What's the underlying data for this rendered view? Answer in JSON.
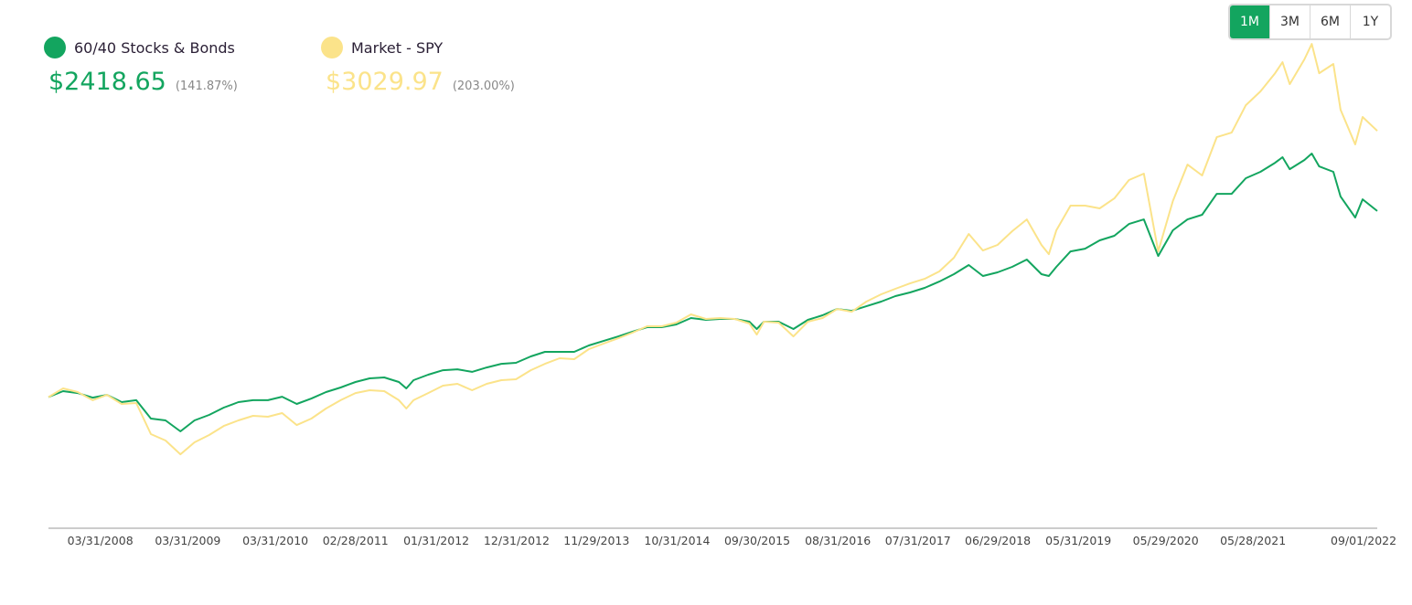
{
  "range_buttons": [
    "1M",
    "3M",
    "6M",
    "1Y"
  ],
  "active_range": 0,
  "chart_data": {
    "type": "line",
    "x": [
      "08/28/2007",
      "10/28/2007",
      "12/28/2007",
      "02/28/2008",
      "04/28/2008",
      "06/28/2008",
      "08/28/2008",
      "10/28/2008",
      "12/28/2008",
      "02/28/2009",
      "04/28/2009",
      "06/28/2009",
      "08/28/2009",
      "10/28/2009",
      "12/28/2009",
      "02/28/2010",
      "04/28/2010",
      "06/28/2010",
      "08/28/2010",
      "10/28/2010",
      "12/28/2010",
      "02/28/2011",
      "04/28/2011",
      "06/28/2011",
      "08/28/2011",
      "09/28/2011",
      "10/28/2011",
      "12/28/2011",
      "02/28/2012",
      "04/28/2012",
      "06/28/2012",
      "08/28/2012",
      "10/28/2012",
      "12/28/2012",
      "02/28/2013",
      "04/28/2013",
      "06/28/2013",
      "08/28/2013",
      "10/28/2013",
      "12/28/2013",
      "02/28/2014",
      "04/28/2014",
      "06/28/2014",
      "08/28/2014",
      "10/28/2014",
      "12/28/2014",
      "02/28/2015",
      "04/28/2015",
      "06/28/2015",
      "08/28/2015",
      "09/28/2015",
      "10/28/2015",
      "12/28/2015",
      "02/28/2016",
      "04/28/2016",
      "06/28/2016",
      "08/28/2016",
      "10/28/2016",
      "12/28/2016",
      "02/28/2017",
      "04/28/2017",
      "06/28/2017",
      "08/28/2017",
      "10/28/2017",
      "12/28/2017",
      "02/28/2018",
      "04/28/2018",
      "06/28/2018",
      "08/28/2018",
      "10/28/2018",
      "12/28/2018",
      "01/28/2019",
      "02/28/2019",
      "04/28/2019",
      "06/28/2019",
      "08/28/2019",
      "10/28/2019",
      "12/28/2019",
      "02/28/2020",
      "04/28/2020",
      "06/28/2020",
      "08/28/2020",
      "10/28/2020",
      "12/28/2020",
      "02/28/2021",
      "04/28/2021",
      "06/28/2021",
      "08/28/2021",
      "09/28/2021",
      "10/28/2021",
      "12/28/2021",
      "01/28/2022",
      "02/28/2022",
      "04/28/2022",
      "05/28/2022",
      "07/28/2022",
      "08/28/2022",
      "10/28/2022"
    ],
    "xlim": [
      "08/28/2007",
      "10/28/2022"
    ],
    "xticks": [
      "03/31/2008",
      "03/31/2009",
      "03/31/2010",
      "02/28/2011",
      "01/31/2012",
      "12/31/2012",
      "11/29/2013",
      "10/31/2014",
      "09/30/2015",
      "08/31/2016",
      "07/31/2017",
      "06/29/2018",
      "05/31/2019",
      "05/29/2020",
      "05/28/2021",
      "09/01/2022"
    ],
    "ylim": [
      0,
      4000
    ],
    "series": [
      {
        "name": "60/40 Stocks & Bonds",
        "color": "#13a55f",
        "total_label": "$2418.65",
        "change_label": "(141.87%)",
        "values": [
          1000,
          1045,
          1031,
          996,
          1017,
          962,
          976,
          836,
          822,
          739,
          822,
          864,
          920,
          962,
          976,
          976,
          1003,
          948,
          989,
          1038,
          1073,
          1115,
          1143,
          1150,
          1115,
          1066,
          1129,
          1171,
          1205,
          1212,
          1192,
          1226,
          1254,
          1261,
          1310,
          1345,
          1345,
          1345,
          1394,
          1428,
          1463,
          1498,
          1533,
          1533,
          1554,
          1603,
          1589,
          1596,
          1596,
          1575,
          1519,
          1575,
          1575,
          1519,
          1589,
          1624,
          1672,
          1658,
          1693,
          1728,
          1770,
          1798,
          1833,
          1881,
          1937,
          2007,
          1923,
          1951,
          1993,
          2049,
          1937,
          1923,
          1993,
          2111,
          2132,
          2195,
          2230,
          2320,
          2355,
          2076,
          2272,
          2355,
          2390,
          2550,
          2550,
          2669,
          2718,
          2787,
          2829,
          2738,
          2808,
          2857,
          2759,
          2718,
          2529,
          2369,
          2508,
          2419
        ]
      },
      {
        "name": "Market - SPY",
        "color": "#fbe38a",
        "total_label": "$3029.97",
        "change_label": "(203.00%)",
        "values": [
          1000,
          1066,
          1038,
          976,
          1017,
          948,
          955,
          718,
          669,
          564,
          655,
          711,
          780,
          822,
          857,
          850,
          878,
          787,
          836,
          913,
          976,
          1031,
          1052,
          1045,
          976,
          913,
          976,
          1031,
          1087,
          1101,
          1052,
          1101,
          1129,
          1136,
          1205,
          1254,
          1296,
          1289,
          1366,
          1408,
          1449,
          1491,
          1540,
          1540,
          1568,
          1631,
          1596,
          1603,
          1596,
          1561,
          1477,
          1575,
          1568,
          1463,
          1575,
          1603,
          1672,
          1651,
          1728,
          1784,
          1826,
          1867,
          1902,
          1958,
          2063,
          2244,
          2118,
          2160,
          2265,
          2355,
          2160,
          2090,
          2272,
          2460,
          2460,
          2439,
          2515,
          2655,
          2704,
          2111,
          2495,
          2773,
          2690,
          2982,
          3017,
          3226,
          3331,
          3470,
          3554,
          3386,
          3575,
          3693,
          3470,
          3540,
          3191,
          2927,
          3136,
          3030
        ]
      }
    ]
  }
}
